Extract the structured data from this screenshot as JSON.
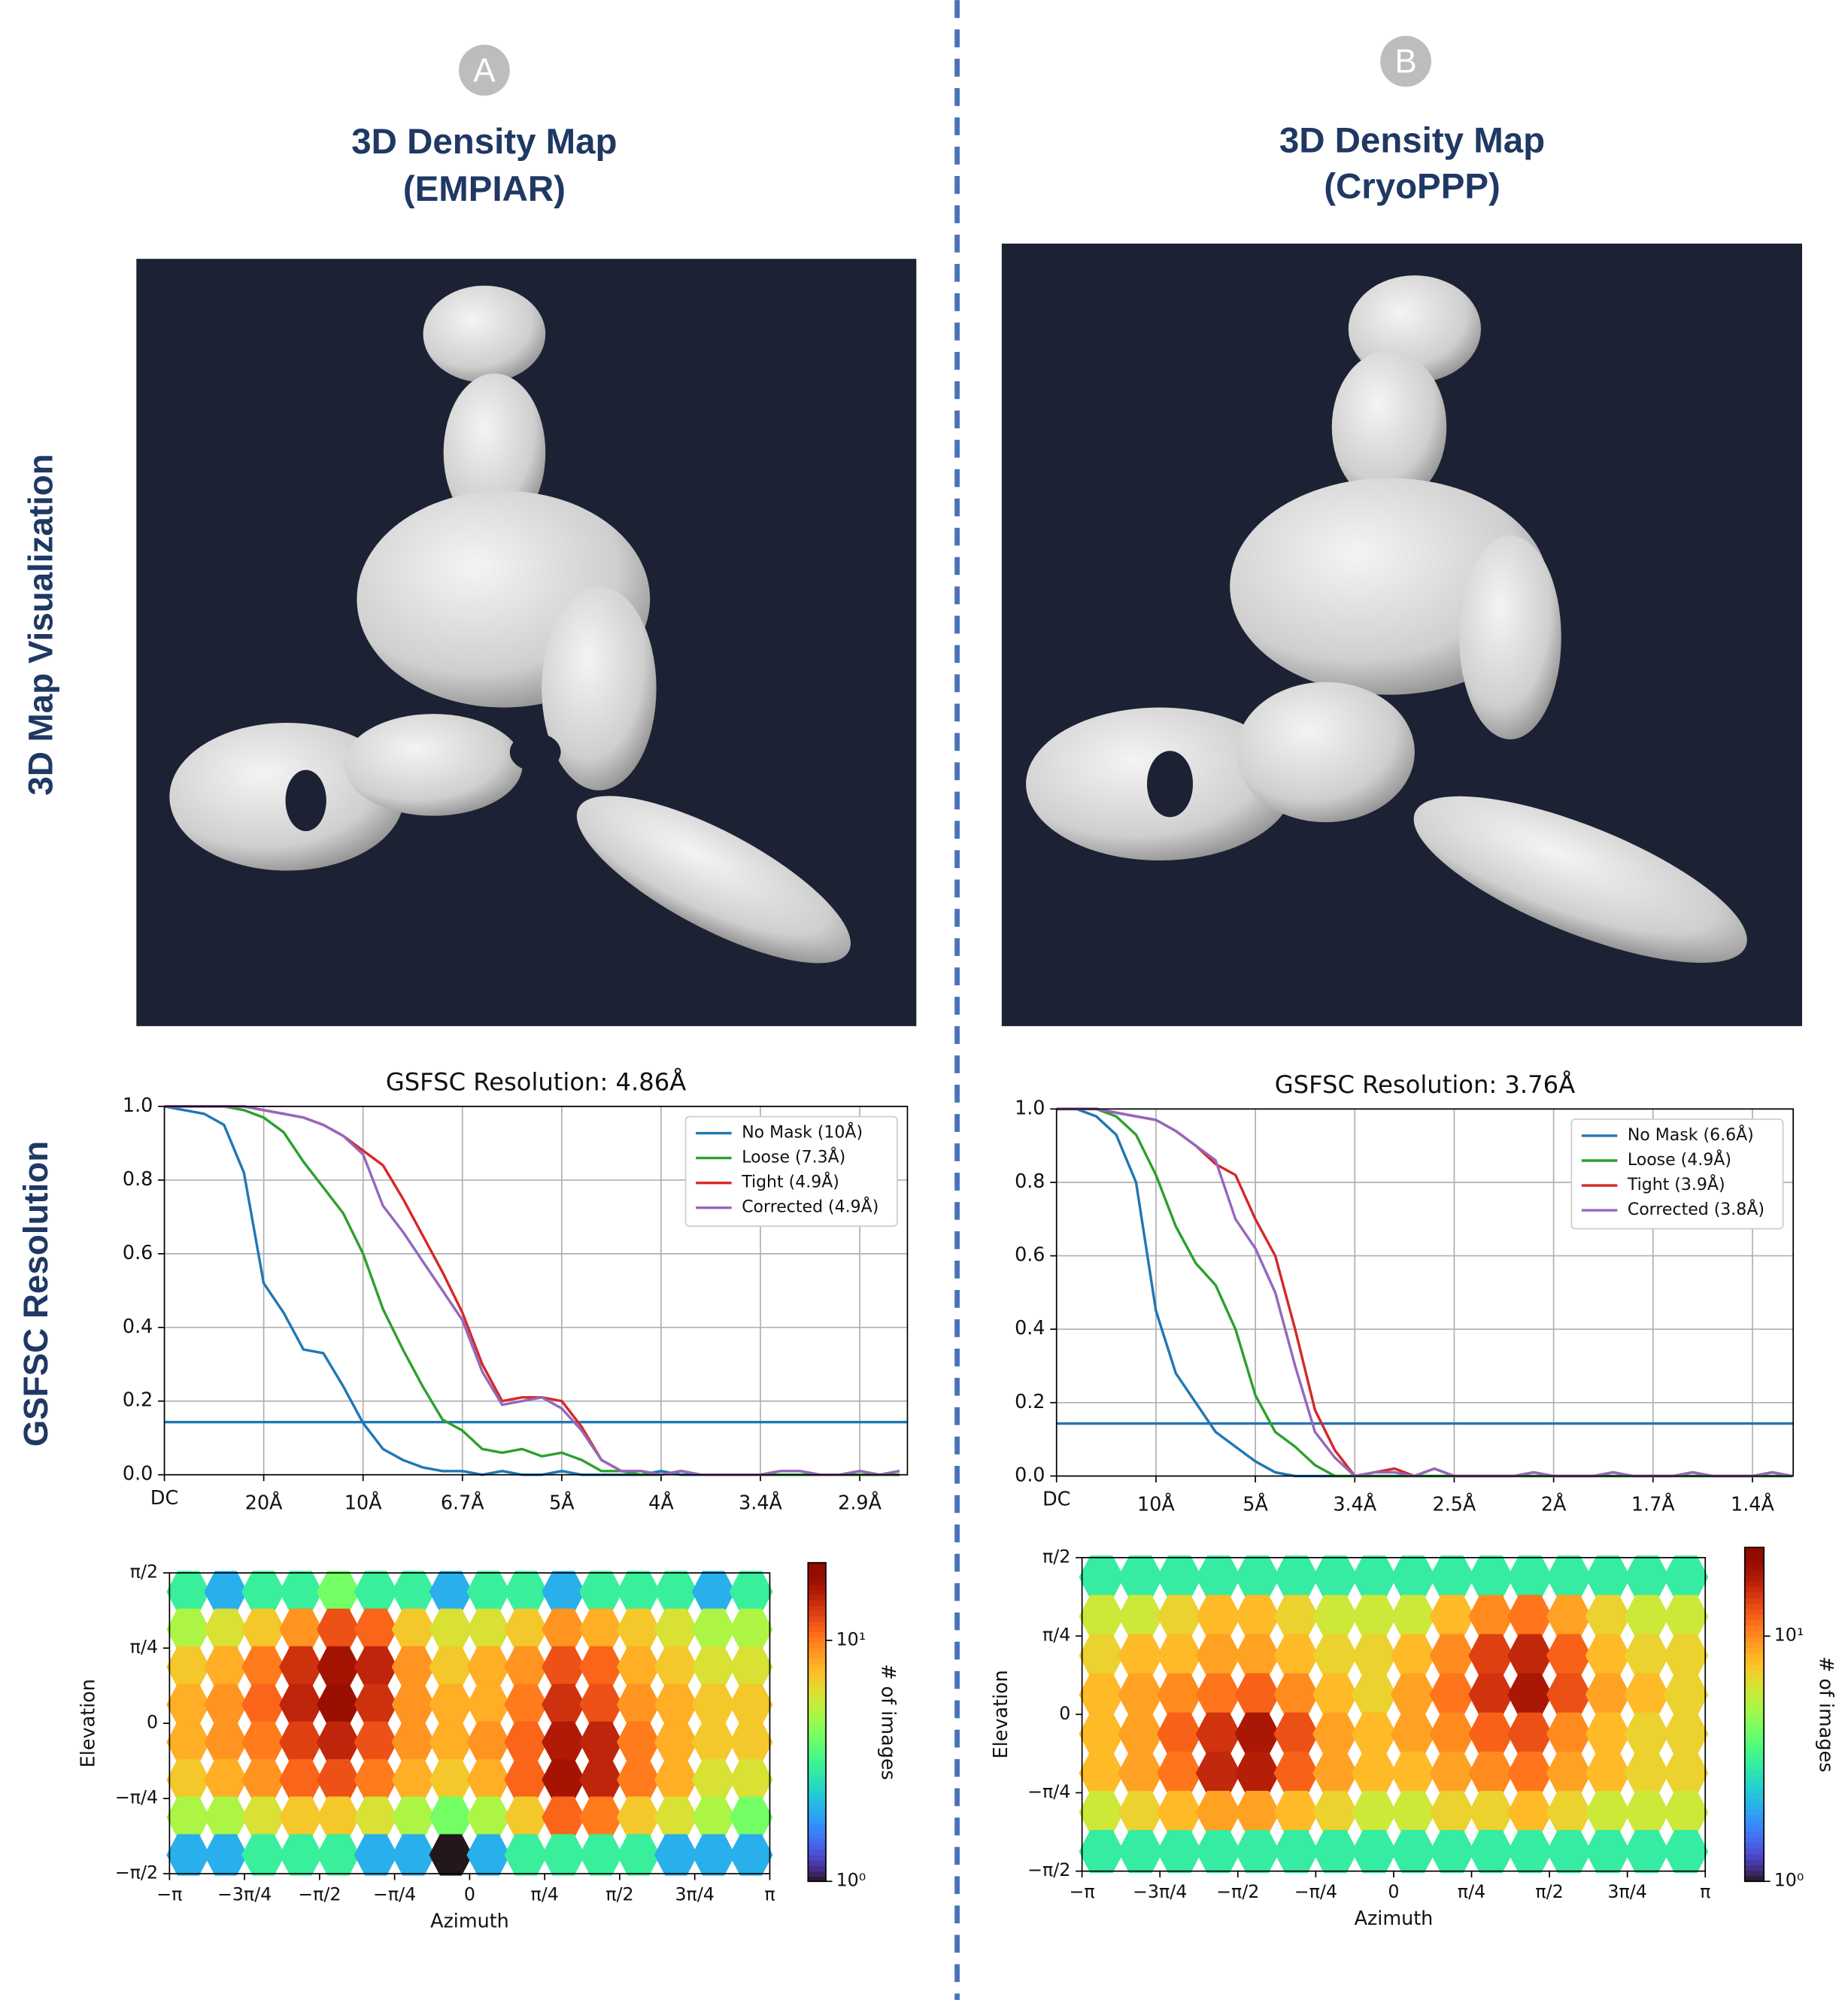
{
  "panels": [
    {
      "letter": "A",
      "title": [
        "3D Density Map",
        "(EMPIAR)"
      ]
    },
    {
      "letter": "B",
      "title": [
        "3D Density Map",
        "(CryoPPP)"
      ]
    }
  ],
  "row_labels": [
    "3D Map Visualization",
    "GSFSC Resolution"
  ],
  "chart_data": [
    {
      "type": "line",
      "title": "GSFSC Resolution: 4.86Å",
      "x": [
        0,
        0.01,
        0.02,
        0.03,
        0.04,
        0.05,
        0.06,
        0.07,
        0.08,
        0.09,
        0.1,
        0.11,
        0.12,
        0.13,
        0.14,
        0.15,
        0.16,
        0.17,
        0.18,
        0.19,
        0.2,
        0.21,
        0.22,
        0.23,
        0.24,
        0.25,
        0.26,
        0.27,
        0.28,
        0.29,
        0.3,
        0.31,
        0.32,
        0.33,
        0.34,
        0.35,
        0.36,
        0.37
      ],
      "series": [
        {
          "name": "No Mask (10Å)",
          "color": "#1f77b4",
          "values": [
            1,
            0.99,
            0.98,
            0.95,
            0.82,
            0.52,
            0.44,
            0.34,
            0.33,
            0.24,
            0.14,
            0.07,
            0.04,
            0.02,
            0.01,
            0.01,
            0,
            0.01,
            0,
            0,
            0.01,
            0,
            0,
            0,
            0,
            0.01,
            0,
            0,
            0,
            0,
            0,
            0,
            0,
            0,
            0,
            0,
            0,
            0
          ]
        },
        {
          "name": "Loose (7.3Å)",
          "color": "#2ca02c",
          "values": [
            1,
            1,
            1,
            1,
            0.99,
            0.97,
            0.93,
            0.85,
            0.78,
            0.71,
            0.6,
            0.45,
            0.34,
            0.24,
            0.15,
            0.12,
            0.07,
            0.06,
            0.07,
            0.05,
            0.06,
            0.04,
            0.01,
            0.01,
            0,
            0,
            0.01,
            0,
            0,
            0,
            0,
            0,
            0,
            0,
            0,
            0,
            0,
            0
          ]
        },
        {
          "name": "Tight (4.9Å)",
          "color": "#d62728",
          "values": [
            1,
            1,
            1,
            1,
            1,
            0.99,
            0.98,
            0.97,
            0.95,
            0.92,
            0.88,
            0.84,
            0.75,
            0.65,
            0.55,
            0.44,
            0.3,
            0.2,
            0.21,
            0.21,
            0.2,
            0.13,
            0.04,
            0.01,
            0.01,
            0,
            0.01,
            0,
            0,
            0,
            0,
            0.01,
            0.01,
            0,
            0,
            0.01,
            0,
            0.01
          ]
        },
        {
          "name": "Corrected (4.9Å)",
          "color": "#9467bd",
          "values": [
            1,
            1,
            1,
            1,
            1,
            0.99,
            0.98,
            0.97,
            0.95,
            0.92,
            0.87,
            0.73,
            0.66,
            0.58,
            0.5,
            0.42,
            0.28,
            0.19,
            0.2,
            0.21,
            0.18,
            0.12,
            0.04,
            0.01,
            0.01,
            0,
            0.01,
            0,
            0,
            0,
            0,
            0.01,
            0.01,
            0,
            0,
            0.01,
            0,
            0.01
          ]
        }
      ],
      "threshold": 0.143,
      "threshold_color": "#1f77b4",
      "xlim": [
        0,
        0.374
      ],
      "xticks": [
        {
          "value": 0,
          "label": "DC"
        },
        {
          "value": 0.05,
          "label": "20Å"
        },
        {
          "value": 0.1,
          "label": "10Å"
        },
        {
          "value": 0.15,
          "label": "6.7Å"
        },
        {
          "value": 0.2,
          "label": "5Å"
        },
        {
          "value": 0.25,
          "label": "4Å"
        },
        {
          "value": 0.3,
          "label": "3.4Å"
        },
        {
          "value": 0.35,
          "label": "2.9Å"
        }
      ],
      "ylim": [
        0,
        1
      ],
      "yticks": [
        {
          "value": 0,
          "label": "0.0"
        },
        0.2,
        0.4,
        0.6,
        0.8,
        {
          "value": 1,
          "label": "1.0"
        }
      ],
      "grid": true,
      "legend": "upper right"
    },
    {
      "type": "line",
      "title": "GSFSC Resolution: 3.76Å",
      "x": [
        0,
        0.02,
        0.04,
        0.06,
        0.08,
        0.1,
        0.12,
        0.14,
        0.16,
        0.18,
        0.2,
        0.22,
        0.24,
        0.26,
        0.28,
        0.3,
        0.32,
        0.34,
        0.36,
        0.38,
        0.4,
        0.42,
        0.44,
        0.46,
        0.48,
        0.5,
        0.52,
        0.54,
        0.56,
        0.58,
        0.6,
        0.62,
        0.64,
        0.66,
        0.68,
        0.7,
        0.72,
        0.74
      ],
      "series": [
        {
          "name": "No Mask (6.6Å)",
          "color": "#1f77b4",
          "values": [
            1,
            1,
            0.98,
            0.93,
            0.8,
            0.45,
            0.28,
            0.2,
            0.12,
            0.08,
            0.04,
            0.01,
            0,
            0,
            0,
            0,
            0,
            0,
            0,
            0,
            0,
            0,
            0,
            0,
            0,
            0,
            0,
            0,
            0,
            0,
            0,
            0,
            0,
            0,
            0,
            0,
            0,
            0
          ]
        },
        {
          "name": "Loose (4.9Å)",
          "color": "#2ca02c",
          "values": [
            1,
            1,
            1,
            0.98,
            0.93,
            0.82,
            0.68,
            0.58,
            0.52,
            0.4,
            0.22,
            0.12,
            0.08,
            0.03,
            0,
            0,
            0,
            0,
            0,
            0,
            0,
            0,
            0,
            0,
            0,
            0,
            0,
            0,
            0,
            0,
            0,
            0,
            0,
            0,
            0,
            0,
            0,
            0
          ]
        },
        {
          "name": "Tight (3.9Å)",
          "color": "#d62728",
          "values": [
            1,
            1,
            1,
            0.99,
            0.98,
            0.97,
            0.94,
            0.9,
            0.85,
            0.82,
            0.7,
            0.6,
            0.4,
            0.18,
            0.07,
            0,
            0.01,
            0.02,
            0,
            0.02,
            0,
            0,
            0,
            0,
            0.01,
            0,
            0,
            0,
            0.01,
            0,
            0,
            0,
            0.01,
            0,
            0,
            0,
            0.01,
            0
          ]
        },
        {
          "name": "Corrected (3.8Å)",
          "color": "#9467bd",
          "values": [
            1,
            1,
            1,
            0.99,
            0.98,
            0.97,
            0.94,
            0.9,
            0.86,
            0.7,
            0.62,
            0.5,
            0.3,
            0.12,
            0.05,
            0,
            0.01,
            0.01,
            0,
            0.02,
            0,
            0,
            0,
            0,
            0.01,
            0,
            0,
            0,
            0.01,
            0,
            0,
            0,
            0.01,
            0,
            0,
            0,
            0.01,
            0
          ]
        }
      ],
      "threshold": 0.143,
      "threshold_color": "#1f77b4",
      "xlim": [
        0,
        0.741
      ],
      "xticks": [
        {
          "value": 0,
          "label": "DC"
        },
        {
          "value": 0.1,
          "label": "10Å"
        },
        {
          "value": 0.2,
          "label": "5Å"
        },
        {
          "value": 0.3,
          "label": "3.4Å"
        },
        {
          "value": 0.4,
          "label": "2.5Å"
        },
        {
          "value": 0.5,
          "label": "2Å"
        },
        {
          "value": 0.6,
          "label": "1.7Å"
        },
        {
          "value": 0.7,
          "label": "1.4Å"
        }
      ],
      "ylim": [
        0,
        1
      ],
      "yticks": [
        {
          "value": 0,
          "label": "0.0"
        },
        0.2,
        0.4,
        0.6,
        0.8,
        {
          "value": 1,
          "label": "1.0"
        }
      ],
      "grid": true,
      "legend": "upper right"
    },
    {
      "type": "hexbin",
      "xlabel": "Azimuth",
      "ylabel": "Elevation",
      "zlabel": "# of images",
      "colormap": "turbo",
      "log_z": true,
      "values": [
        [
          3,
          2,
          3,
          3,
          4,
          3,
          3,
          2,
          3,
          3,
          2,
          3,
          3,
          3,
          2,
          3
        ],
        [
          5,
          6,
          7,
          9,
          12,
          11,
          7,
          6,
          6,
          7,
          9,
          8,
          7,
          6,
          5,
          5
        ],
        [
          7,
          8,
          10,
          14,
          17,
          15,
          9,
          7,
          8,
          9,
          12,
          11,
          8,
          7,
          6,
          6
        ],
        [
          8,
          9,
          11,
          15,
          18,
          14,
          9,
          8,
          8,
          10,
          14,
          12,
          9,
          8,
          7,
          7
        ],
        [
          8,
          9,
          10,
          13,
          15,
          12,
          9,
          8,
          9,
          11,
          16,
          15,
          10,
          8,
          7,
          7
        ],
        [
          7,
          8,
          9,
          11,
          12,
          10,
          8,
          7,
          8,
          11,
          17,
          15,
          10,
          8,
          6,
          6
        ],
        [
          5,
          5,
          6,
          7,
          7,
          6,
          5,
          4,
          5,
          7,
          11,
          10,
          7,
          6,
          5,
          4
        ],
        [
          2,
          2,
          3,
          3,
          3,
          2,
          2,
          1,
          2,
          3,
          3,
          3,
          3,
          2,
          2,
          2
        ]
      ],
      "xlim": [
        -3.14159,
        3.14159
      ],
      "xticks": [
        {
          "value": -3.14159,
          "label": "−π"
        },
        {
          "value": -2.35619,
          "label": "−3π/4"
        },
        {
          "value": -1.5708,
          "label": "−π/2"
        },
        {
          "value": -0.7854,
          "label": "−π/4"
        },
        0,
        {
          "value": 0.7854,
          "label": "π/4"
        },
        {
          "value": 1.5708,
          "label": "π/2"
        },
        {
          "value": 2.35619,
          "label": "3π/4"
        },
        {
          "value": 3.14159,
          "label": "π"
        }
      ],
      "ylim": [
        -1.5708,
        1.5708
      ],
      "yticks": [
        {
          "value": -1.5708,
          "label": "−π/2"
        },
        {
          "value": -0.7854,
          "label": "−π/4"
        },
        0,
        {
          "value": 0.7854,
          "label": "π/4"
        },
        {
          "value": 1.5708,
          "label": "π/2"
        }
      ],
      "zlim": [
        1,
        21
      ],
      "zticks": [
        {
          "value": 1,
          "label": "10⁰"
        },
        {
          "value": 10,
          "label": "10¹"
        }
      ]
    },
    {
      "type": "hexbin",
      "xlabel": "Azimuth",
      "ylabel": "Elevation",
      "zlabel": "# of images",
      "colormap": "turbo",
      "log_z": true,
      "values": [
        [
          3,
          3,
          3,
          3,
          3,
          3,
          3,
          3,
          3,
          3,
          3,
          3,
          3,
          3,
          3,
          3
        ],
        [
          6,
          6,
          7,
          8,
          8,
          7,
          6,
          6,
          6,
          8,
          10,
          11,
          9,
          7,
          6,
          6
        ],
        [
          7,
          8,
          8,
          9,
          9,
          8,
          7,
          7,
          8,
          10,
          14,
          16,
          12,
          8,
          7,
          7
        ],
        [
          8,
          9,
          10,
          11,
          12,
          10,
          8,
          7,
          9,
          11,
          15,
          18,
          13,
          9,
          8,
          7
        ],
        [
          8,
          9,
          12,
          15,
          18,
          13,
          9,
          8,
          9,
          10,
          12,
          13,
          10,
          8,
          7,
          7
        ],
        [
          8,
          9,
          11,
          16,
          17,
          12,
          9,
          8,
          8,
          9,
          10,
          11,
          9,
          8,
          7,
          7
        ],
        [
          6,
          7,
          8,
          9,
          9,
          8,
          7,
          6,
          6,
          7,
          7,
          8,
          7,
          6,
          6,
          6
        ],
        [
          3,
          3,
          3,
          3,
          3,
          3,
          3,
          3,
          3,
          3,
          3,
          3,
          3,
          3,
          3,
          3
        ]
      ],
      "xlim": [
        -3.14159,
        3.14159
      ],
      "xticks": [
        {
          "value": -3.14159,
          "label": "−π"
        },
        {
          "value": -2.35619,
          "label": "−3π/4"
        },
        {
          "value": -1.5708,
          "label": "−π/2"
        },
        {
          "value": -0.7854,
          "label": "−π/4"
        },
        0,
        {
          "value": 0.7854,
          "label": "π/4"
        },
        {
          "value": 1.5708,
          "label": "π/2"
        },
        {
          "value": 2.35619,
          "label": "3π/4"
        },
        {
          "value": 3.14159,
          "label": "π"
        }
      ],
      "ylim": [
        -1.5708,
        1.5708
      ],
      "yticks": [
        {
          "value": -1.5708,
          "label": "−π/2"
        },
        {
          "value": -0.7854,
          "label": "−π/4"
        },
        0,
        {
          "value": 0.7854,
          "label": "π/4"
        },
        {
          "value": 1.5708,
          "label": "π/2"
        }
      ],
      "zlim": [
        1,
        23
      ],
      "zticks": [
        {
          "value": 1,
          "label": "10⁰"
        },
        {
          "value": 10,
          "label": "10¹"
        }
      ]
    }
  ]
}
